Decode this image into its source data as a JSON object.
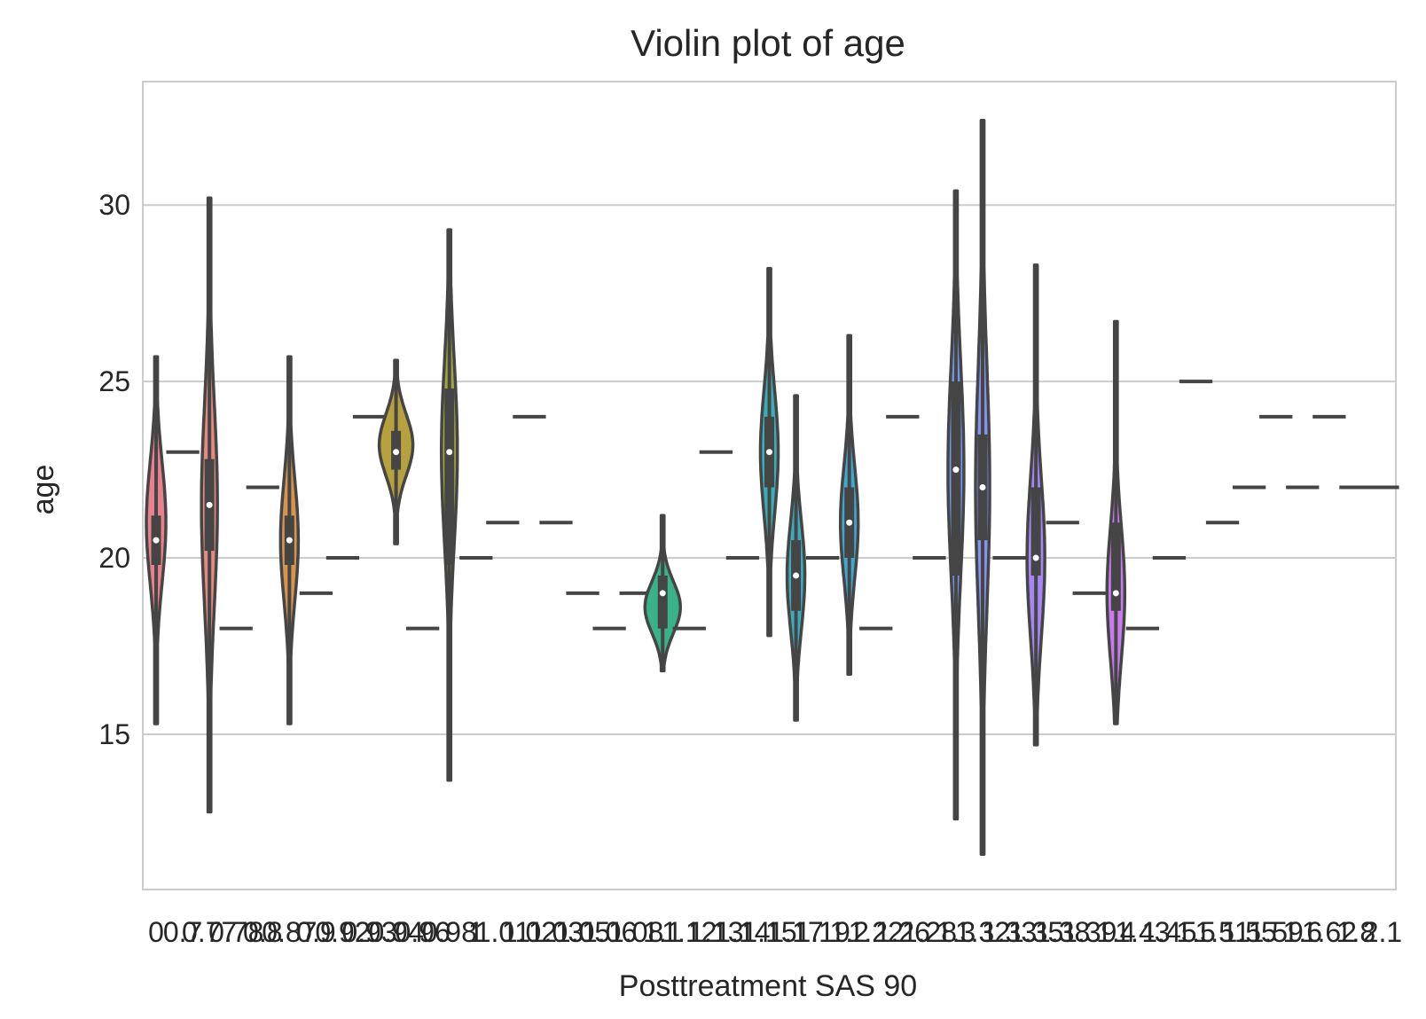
{
  "chart_data": {
    "type": "violin",
    "title": "Violin plot of age",
    "xlabel": "Posttreatment SAS 90",
    "ylabel": "age",
    "yticks": [
      "15",
      "20",
      "25",
      "30"
    ],
    "ylim": [
      10.6,
      33.5
    ],
    "grid": "horizontal",
    "categories": [
      "0",
      "0.7",
      "0.77",
      "0.78",
      "0.8",
      "0.87",
      "0.9",
      "0.92",
      "0.93",
      "0.94",
      "0.96",
      "0.98",
      "1",
      "1.01",
      "1.02",
      "1.03",
      "1.05",
      "1.06",
      "1.08",
      "1.1",
      "1.12",
      "1.13",
      "1.14",
      "1.15",
      "1.17",
      "1.19",
      "1.2",
      "1.22",
      "1.26",
      "1.28",
      "1.3",
      "1.32",
      "1.33",
      "1.35",
      "1.38",
      "1.39",
      "1.4",
      "1.43",
      "1.45",
      "1.5",
      "1.51",
      "1.55",
      "1.59",
      "1.6",
      "1.62",
      "1.8",
      "2.1"
    ],
    "series": [
      {
        "min": 15.3,
        "max": 25.7,
        "q1": 19.8,
        "median": 20.5,
        "q3": 21.2,
        "maxhalfwidth": 11,
        "peak": 21.0,
        "color": "#e8808d"
      },
      {
        "min": 23,
        "max": 23,
        "median": 23,
        "color": "#e5858a"
      },
      {
        "min": 12.8,
        "max": 30.2,
        "q1": 20.2,
        "median": 21.5,
        "q3": 22.8,
        "maxhalfwidth": 9,
        "peak": 21.5,
        "color": "#e48a80"
      },
      {
        "min": 18,
        "max": 18,
        "median": 18,
        "color": "#e28d7a"
      },
      {
        "min": 22,
        "max": 22,
        "median": 22,
        "color": "#de9170"
      },
      {
        "min": 15.3,
        "max": 25.7,
        "q1": 19.8,
        "median": 20.5,
        "q3": 21.2,
        "maxhalfwidth": 10,
        "peak": 20.5,
        "color": "#d8934c"
      },
      {
        "min": 19,
        "max": 19,
        "median": 19,
        "color": "#cf9a45"
      },
      {
        "min": 20,
        "max": 20,
        "median": 20,
        "color": "#c99c44"
      },
      {
        "min": 24,
        "max": 24,
        "median": 24,
        "color": "#c09f44"
      },
      {
        "min": 20.4,
        "max": 25.6,
        "q1": 22.5,
        "median": 23,
        "q3": 23.6,
        "maxhalfwidth": 19,
        "peak": 23.2,
        "color": "#b7a13f"
      },
      {
        "min": 18,
        "max": 18,
        "median": 18,
        "color": "#aaa43e"
      },
      {
        "min": 13.7,
        "max": 29.3,
        "q1": 19.8,
        "median": 23,
        "q3": 24.8,
        "maxhalfwidth": 9,
        "peak": 23,
        "color": "#9fa73d"
      },
      {
        "min": 20,
        "max": 20,
        "median": 20,
        "color": "#90aa3d"
      },
      {
        "min": 21,
        "max": 21,
        "median": 21,
        "color": "#7fad3d"
      },
      {
        "min": 24,
        "max": 24,
        "median": 24,
        "color": "#6bb040"
      },
      {
        "min": 21,
        "max": 21,
        "median": 21,
        "color": "#50b347"
      },
      {
        "min": 19,
        "max": 19,
        "median": 19,
        "color": "#3ab55a"
      },
      {
        "min": 18,
        "max": 18,
        "median": 18,
        "color": "#36b46e"
      },
      {
        "min": 19,
        "max": 19,
        "median": 19,
        "color": "#36b37c"
      },
      {
        "min": 16.8,
        "max": 21.2,
        "q1": 18,
        "median": 19,
        "q3": 19.5,
        "maxhalfwidth": 20,
        "peak": 18.6,
        "color": "#39b28a"
      },
      {
        "min": 18,
        "max": 18,
        "median": 18,
        "color": "#37b196"
      },
      {
        "min": 23,
        "max": 23,
        "median": 23,
        "color": "#38b0a1"
      },
      {
        "min": 20,
        "max": 20,
        "median": 20,
        "color": "#39afab"
      },
      {
        "min": 17.8,
        "max": 28.2,
        "q1": 22,
        "median": 23,
        "q3": 24,
        "maxhalfwidth": 10,
        "peak": 23,
        "color": "#3aaeb5"
      },
      {
        "min": 15.4,
        "max": 24.6,
        "q1": 18.5,
        "median": 19.5,
        "q3": 20.5,
        "maxhalfwidth": 10,
        "peak": 19.5,
        "color": "#3bacbf"
      },
      {
        "min": 20,
        "max": 20,
        "median": 20,
        "color": "#3caac8"
      },
      {
        "min": 16.7,
        "max": 26.3,
        "q1": 20,
        "median": 21,
        "q3": 22,
        "maxhalfwidth": 10,
        "peak": 21,
        "color": "#3ea8d2"
      },
      {
        "min": 18,
        "max": 18,
        "median": 18,
        "color": "#45a5dc"
      },
      {
        "min": 24,
        "max": 24,
        "median": 24,
        "color": "#52a1e4"
      },
      {
        "min": 20,
        "max": 20,
        "median": 20,
        "color": "#639cea"
      },
      {
        "min": 12.6,
        "max": 30.4,
        "q1": 19.5,
        "median": 22.5,
        "q3": 25,
        "maxhalfwidth": 9,
        "peak": 22.5,
        "color": "#7497ee"
      },
      {
        "min": 11.6,
        "max": 32.4,
        "q1": 20.5,
        "median": 22,
        "q3": 23.5,
        "maxhalfwidth": 8,
        "peak": 22,
        "color": "#8692f0"
      },
      {
        "min": 20,
        "max": 20,
        "median": 20,
        "color": "#978cf2"
      },
      {
        "min": 14.7,
        "max": 28.3,
        "q1": 19.5,
        "median": 20,
        "q3": 22,
        "maxhalfwidth": 10,
        "peak": 20,
        "color": "#a587f3"
      },
      {
        "min": 21,
        "max": 21,
        "median": 21,
        "color": "#b282f3"
      },
      {
        "min": 19,
        "max": 19,
        "median": 19,
        "color": "#be7ef1"
      },
      {
        "min": 15.3,
        "max": 26.7,
        "q1": 18.5,
        "median": 19,
        "q3": 21,
        "maxhalfwidth": 10,
        "peak": 19,
        "color": "#c87aee"
      },
      {
        "min": 18,
        "max": 18,
        "median": 18,
        "color": "#d277e9"
      },
      {
        "min": 20,
        "max": 20,
        "median": 20,
        "color": "#db74e3"
      },
      {
        "min": 25,
        "max": 25,
        "median": 25,
        "color": "#e271db"
      },
      {
        "min": 21,
        "max": 21,
        "median": 21,
        "color": "#e770d2"
      },
      {
        "min": 22,
        "max": 22,
        "median": 22,
        "color": "#eb71c8"
      },
      {
        "min": 24,
        "max": 24,
        "median": 24,
        "color": "#ee73bd"
      },
      {
        "min": 22,
        "max": 22,
        "median": 22,
        "color": "#ee76b2"
      },
      {
        "min": 24,
        "max": 24,
        "median": 24,
        "color": "#ee79a6"
      },
      {
        "min": 22,
        "max": 22,
        "median": 22,
        "color": "#ed7c9b"
      },
      {
        "min": 22,
        "max": 22,
        "median": 22,
        "color": "#eb7f91"
      }
    ]
  }
}
